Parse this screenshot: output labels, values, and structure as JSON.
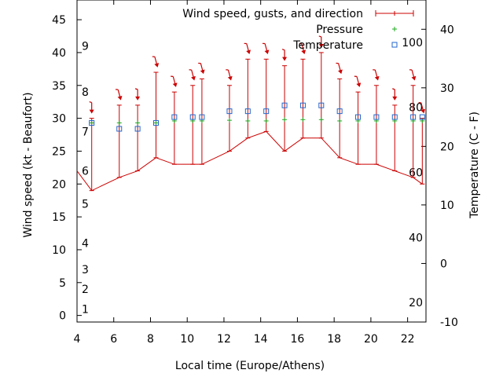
{
  "chart_data": {
    "type": "line",
    "xlabel": "Local time (Europe/Athens)",
    "ylabel_left": "Wind speed (kt - Beaufort)",
    "ylabel_right": "Temperature (C - F)",
    "xlim": [
      4,
      23
    ],
    "ylim_left": [
      -1,
      48
    ],
    "ylim_right": [
      -10,
      45
    ],
    "x_ticks": [
      4,
      6,
      8,
      10,
      12,
      14,
      16,
      18,
      20,
      22
    ],
    "y_ticks_left": [
      0,
      5,
      10,
      15,
      20,
      25,
      30,
      35,
      40,
      45
    ],
    "y_ticks_right": [
      -10,
      0,
      10,
      20,
      30,
      40
    ],
    "beaufort_labels": [
      {
        "text": "1",
        "kt": 1
      },
      {
        "text": "2",
        "kt": 4
      },
      {
        "text": "3",
        "kt": 7
      },
      {
        "text": "4",
        "kt": 11
      },
      {
        "text": "5",
        "kt": 17
      },
      {
        "text": "6",
        "kt": 22
      },
      {
        "text": "7",
        "kt": 28
      },
      {
        "text": "8",
        "kt": 34
      },
      {
        "text": "9",
        "kt": 41
      }
    ],
    "fahrenheit_labels": [
      {
        "text": "20",
        "degF": 20
      },
      {
        "text": "40",
        "degF": 40
      },
      {
        "text": "60",
        "degF": 60
      },
      {
        "text": "80",
        "degF": 80
      },
      {
        "text": "100",
        "degF": 100
      }
    ],
    "legend": {
      "placement": "top-right",
      "entries": [
        "Wind speed, gusts, and direction",
        "Pressure",
        "Temperature"
      ]
    },
    "colors": {
      "wind": "#cc0000",
      "pressure": "#22aa22",
      "temperature": "#2266cc"
    },
    "series": [
      {
        "name": "Wind speed, gusts, and direction",
        "x": [
          4.8,
          6.3,
          7.3,
          8.3,
          9.3,
          10.3,
          10.8,
          12.3,
          13.3,
          14.3,
          15.3,
          16.3,
          17.3,
          18.3,
          19.3,
          20.3,
          21.3,
          22.3,
          22.8
        ],
        "speed": [
          19,
          21,
          22,
          24,
          23,
          23,
          23,
          25,
          27,
          28,
          25,
          27,
          27,
          24,
          23,
          23,
          22,
          21,
          20
        ],
        "gust": [
          30,
          32,
          32,
          37,
          34,
          35,
          36,
          35,
          39,
          39,
          38,
          39,
          40,
          36,
          34,
          35,
          32,
          35,
          30
        ],
        "direction_deg": [
          0,
          345,
          0,
          345,
          345,
          345,
          345,
          345,
          345,
          345,
          0,
          345,
          0,
          345,
          345,
          345,
          0,
          345,
          345
        ],
        "line_start": {
          "x": 4,
          "y": 22
        }
      },
      {
        "name": "Pressure",
        "x": [
          4.8,
          6.3,
          7.3,
          8.3,
          9.3,
          10.3,
          10.8,
          12.3,
          13.3,
          14.3,
          15.3,
          16.3,
          17.3,
          18.3,
          19.3,
          20.3,
          21.3,
          22.3,
          22.8
        ],
        "y_left_scale": [
          29.3,
          29.3,
          29.3,
          29.3,
          29.6,
          29.6,
          29.6,
          29.7,
          29.6,
          29.6,
          29.8,
          29.8,
          29.8,
          29.6,
          29.6,
          29.6,
          29.6,
          29.6,
          29.6
        ]
      },
      {
        "name": "Temperature",
        "x": [
          4.8,
          6.3,
          7.3,
          8.3,
          9.3,
          10.3,
          10.8,
          12.3,
          13.3,
          14.3,
          15.3,
          16.3,
          17.3,
          18.3,
          19.3,
          20.3,
          21.3,
          22.3,
          22.8
        ],
        "temp_c": [
          24,
          23,
          23,
          24,
          25,
          25,
          25,
          26,
          26,
          26,
          27,
          27,
          27,
          26,
          25,
          25,
          25,
          25,
          25
        ]
      }
    ],
    "grid": false
  }
}
